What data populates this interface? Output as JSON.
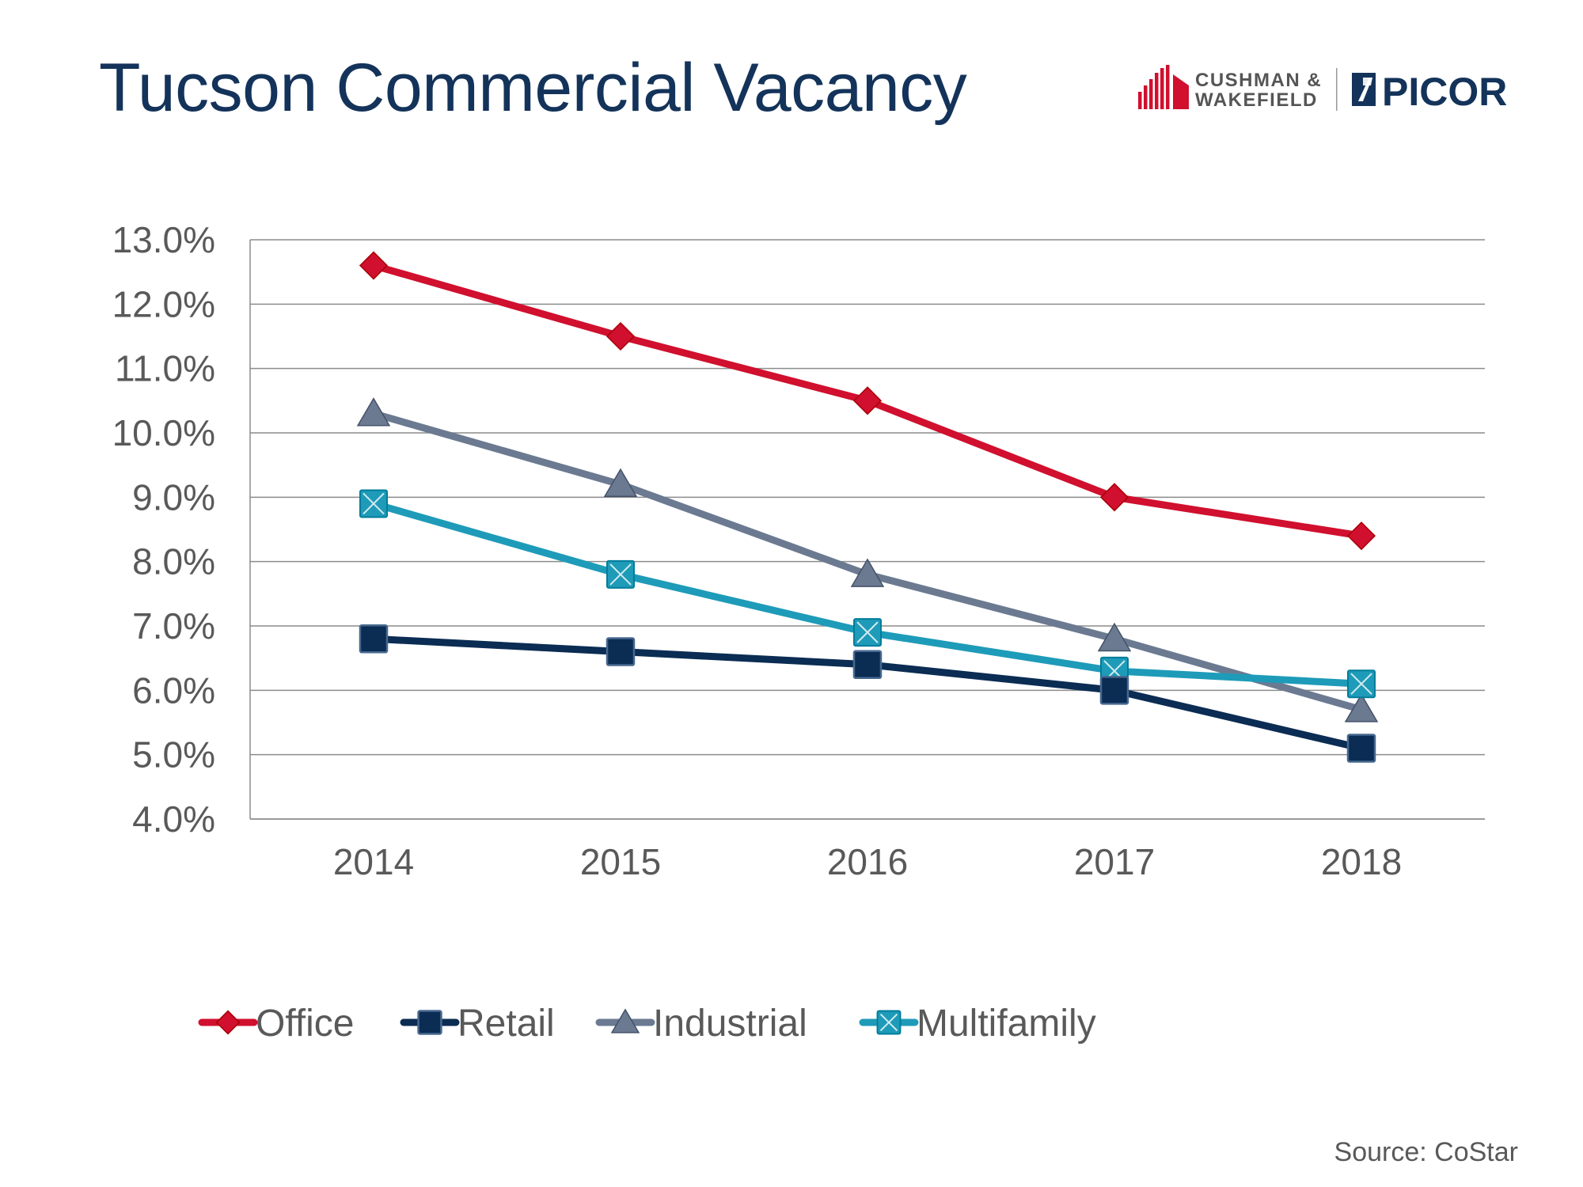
{
  "header": {
    "title": "Tucson Commercial Vacancy"
  },
  "logo": {
    "line1": "CUSHMAN &",
    "line2": "WAKEFIELD",
    "brand": "PICOR",
    "brand_color": "#d0102e",
    "picor_color": "#14335a"
  },
  "footer": {
    "source": "Source: CoStar"
  },
  "chart_data": {
    "type": "line",
    "title": "",
    "xlabel": "",
    "ylabel": "",
    "categories": [
      "2014",
      "2015",
      "2016",
      "2017",
      "2018"
    ],
    "ylim": [
      4.0,
      13.0
    ],
    "yticks": [
      4.0,
      5.0,
      6.0,
      7.0,
      8.0,
      9.0,
      10.0,
      11.0,
      12.0,
      13.0
    ],
    "ytick_labels": [
      "4.0%",
      "5.0%",
      "6.0%",
      "7.0%",
      "8.0%",
      "9.0%",
      "10.0%",
      "11.0%",
      "12.0%",
      "13.0%"
    ],
    "grid": true,
    "legend_position": "bottom",
    "series": [
      {
        "name": "Office",
        "values": [
          12.6,
          11.5,
          10.5,
          9.0,
          8.4
        ],
        "color": "#d0102e",
        "marker": "diamond"
      },
      {
        "name": "Retail",
        "values": [
          6.8,
          6.6,
          6.4,
          6.0,
          5.1
        ],
        "color": "#0b2c53",
        "marker": "square"
      },
      {
        "name": "Industrial",
        "values": [
          10.3,
          9.2,
          7.8,
          6.8,
          5.7
        ],
        "color": "#6b7a91",
        "marker": "triangle"
      },
      {
        "name": "Multifamily",
        "values": [
          8.9,
          7.8,
          6.9,
          6.3,
          6.1
        ],
        "color": "#1e9bb8",
        "marker": "xsquare"
      }
    ]
  }
}
